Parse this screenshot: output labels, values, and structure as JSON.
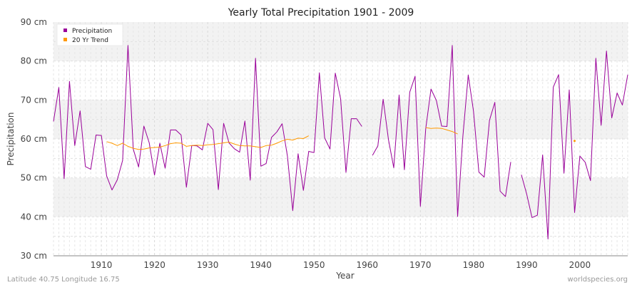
{
  "chart_data": {
    "type": "line",
    "title": "Yearly Total Precipitation 1901 - 2009",
    "xlabel": "Year",
    "ylabel": "Precipitation",
    "xlim": [
      1901,
      2009
    ],
    "ylim": [
      30,
      90
    ],
    "y_unit": "cm",
    "x_ticks": [
      1910,
      1920,
      1930,
      1940,
      1950,
      1960,
      1970,
      1980,
      1990,
      2000
    ],
    "y_ticks": [
      30,
      40,
      50,
      60,
      70,
      80,
      90
    ],
    "y_tick_labels": [
      "30 cm",
      "40 cm",
      "50 cm",
      "60 cm",
      "70 cm",
      "80 cm",
      "90 cm"
    ],
    "grid": true,
    "legend_position": "top-left",
    "series": [
      {
        "name": "Precipitation",
        "color": "#990099",
        "x": [
          1901,
          1902,
          1903,
          1904,
          1905,
          1906,
          1907,
          1908,
          1909,
          1910,
          1911,
          1912,
          1913,
          1914,
          1915,
          1916,
          1917,
          1918,
          1919,
          1920,
          1921,
          1922,
          1923,
          1924,
          1925,
          1926,
          1927,
          1928,
          1929,
          1930,
          1931,
          1932,
          1933,
          1934,
          1935,
          1936,
          1937,
          1938,
          1939,
          1940,
          1941,
          1942,
          1943,
          1944,
          1945,
          1946,
          1947,
          1948,
          1949,
          1950,
          1951,
          1952,
          1953,
          1954,
          1955,
          1956,
          1957,
          1958,
          1959,
          1960,
          1961,
          1962,
          1963,
          1964,
          1965,
          1966,
          1967,
          1968,
          1969,
          1970,
          1971,
          1972,
          1973,
          1974,
          1975,
          1976,
          1977,
          1978,
          1979,
          1980,
          1981,
          1982,
          1983,
          1984,
          1985,
          1986,
          1987,
          1988,
          1989,
          1990,
          1991,
          1992,
          1993,
          1994,
          1995,
          1996,
          1997,
          1998,
          1999,
          2000,
          2001,
          2002,
          2003,
          2004,
          2005,
          2006,
          2007,
          2008,
          2009
        ],
        "values": [
          64.5,
          73.2,
          49.8,
          74.8,
          58.3,
          67.2,
          52.9,
          52.2,
          61.0,
          60.9,
          50.5,
          46.9,
          49.5,
          54.5,
          84.0,
          57.4,
          52.8,
          63.3,
          59.0,
          50.7,
          58.9,
          52.5,
          62.3,
          62.3,
          61.0,
          47.6,
          58.3,
          58.2,
          57.2,
          64.0,
          62.4,
          47.0,
          64.0,
          59.0,
          57.5,
          56.6,
          64.6,
          49.4,
          80.7,
          53.0,
          53.7,
          60.4,
          61.8,
          63.9,
          55.5,
          41.6,
          56.2,
          46.8,
          56.8,
          56.5,
          77.0,
          60.3,
          57.4,
          76.9,
          70.3,
          51.4,
          65.2,
          65.2,
          63.2,
          null,
          55.8,
          58.2,
          70.2,
          59.8,
          52.6,
          71.3,
          52.1,
          72.0,
          76.1,
          42.7,
          62.6,
          72.8,
          69.9,
          63.3,
          63.2,
          84.0,
          40.1,
          60.7,
          76.4,
          67.1,
          51.5,
          50.2,
          64.8,
          69.4,
          46.6,
          45.2,
          54.1,
          null,
          50.8,
          45.8,
          39.8,
          40.4,
          55.9,
          34.3,
          73.3,
          76.5,
          51.2,
          72.6,
          41.1,
          55.6,
          54.0,
          49.3,
          80.7,
          63.5,
          82.6,
          65.4,
          71.8,
          68.7,
          76.5
        ]
      },
      {
        "name": "20 Yr Trend",
        "color": "#FF9900",
        "x": [
          1911,
          1912,
          1913,
          1914,
          1915,
          1916,
          1917,
          1918,
          1919,
          1920,
          1921,
          1922,
          1923,
          1924,
          1925,
          1926,
          1927,
          1928,
          1929,
          1930,
          1931,
          1932,
          1933,
          1934,
          1935,
          1936,
          1937,
          1938,
          1939,
          1940,
          1941,
          1942,
          1943,
          1944,
          1945,
          1946,
          1947,
          1948,
          1949,
          1950,
          1951,
          1952,
          1953,
          1954,
          1955,
          1956,
          1957,
          1958,
          1959,
          1960,
          1961,
          1962,
          1963,
          1964,
          1965,
          1966,
          1967,
          1968,
          1969,
          1970,
          1971,
          1972,
          1973,
          1974,
          1975,
          1976,
          1977,
          1978,
          1979,
          1980,
          1981,
          1982,
          1983,
          1984,
          1985,
          1986,
          1987,
          1988,
          1989,
          1990,
          1991,
          1992,
          1993,
          1994,
          1995,
          1996,
          1997,
          1998,
          1999
        ],
        "values": [
          59.3,
          58.9,
          58.3,
          58.9,
          58.1,
          57.6,
          57.3,
          57.4,
          57.7,
          57.8,
          57.9,
          58.3,
          58.8,
          59.0,
          58.9,
          58.1,
          58.3,
          58.4,
          58.3,
          58.5,
          58.6,
          58.8,
          59.0,
          59.2,
          58.7,
          58.3,
          58.2,
          58.2,
          58.0,
          57.8,
          58.3,
          58.4,
          58.9,
          59.5,
          59.9,
          59.7,
          60.2,
          60.1,
          60.8,
          null,
          null,
          null,
          null,
          null,
          null,
          null,
          null,
          null,
          null,
          null,
          null,
          null,
          null,
          null,
          null,
          null,
          null,
          null,
          null,
          null,
          62.9,
          62.7,
          62.8,
          62.7,
          62.3,
          61.9,
          61.3,
          null,
          null,
          null,
          null,
          null,
          null,
          null,
          null,
          null,
          null,
          null,
          null,
          null,
          null,
          null,
          null,
          null,
          null,
          null,
          null,
          null,
          59.5
        ]
      }
    ]
  },
  "footer": {
    "left": "Latitude 40.75 Longitude 16.75",
    "right": "worldspecies.org"
  }
}
